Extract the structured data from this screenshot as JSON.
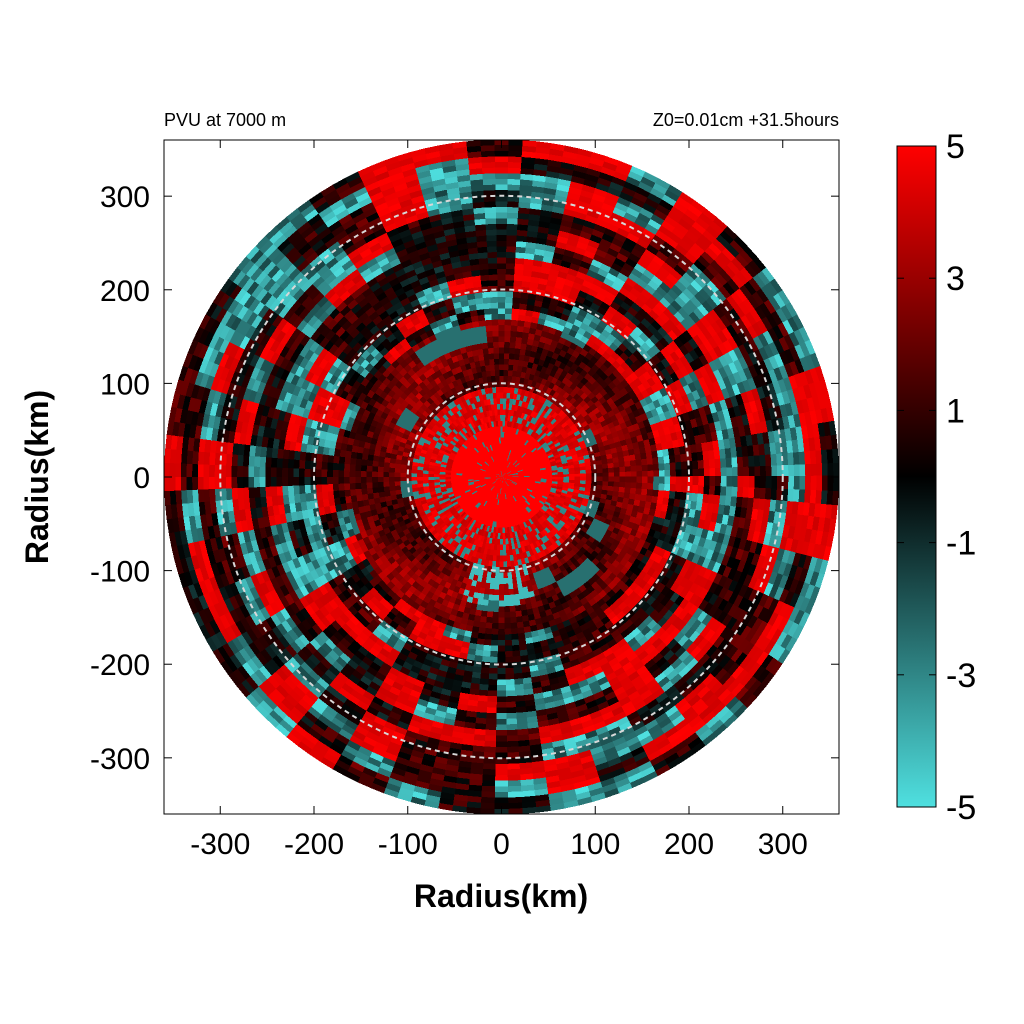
{
  "chart_data": {
    "type": "heatmap",
    "title_left": "PVU at  7000 m",
    "title_right": "Z0=0.01cm  +31.5hours",
    "xlabel": "Radius(km)",
    "ylabel": "Radius(km)",
    "xlim": [
      -360,
      360
    ],
    "ylim": [
      -360,
      360
    ],
    "domain_radius": 360,
    "x_ticks": [
      -300,
      -200,
      -100,
      0,
      100,
      200,
      300
    ],
    "y_ticks": [
      300,
      200,
      100,
      0,
      -100,
      -200,
      -300
    ],
    "x_tick_labels": [
      "-300",
      "-200",
      "-100",
      "0",
      "100",
      "200",
      "300"
    ],
    "y_tick_labels": [
      "300",
      "200",
      "100",
      "0",
      "-100",
      "-200",
      "-300"
    ],
    "reference_circles_km": [
      100,
      200,
      300
    ],
    "colorbar": {
      "min": -5,
      "max": 5,
      "ticks": [
        5,
        3,
        1,
        -1,
        -3,
        -5
      ],
      "tick_labels": [
        "5",
        "3",
        "1",
        "-1",
        "-3",
        "-5"
      ],
      "colors": {
        "low": "#4fe0e0",
        "mid": "#000000",
        "high": "#ff0000"
      }
    },
    "grid": false,
    "legend": "colorbar right"
  }
}
